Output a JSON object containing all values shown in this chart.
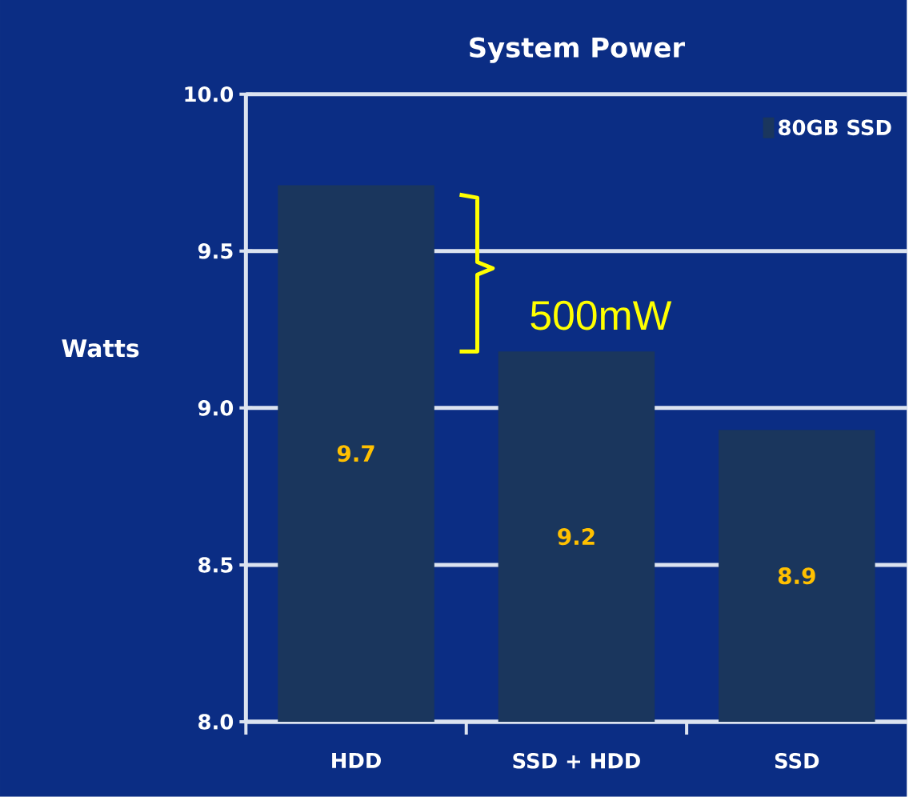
{
  "chart_data": {
    "type": "bar",
    "title": "System Power",
    "ylabel": "Watts",
    "categories": [
      "HDD",
      "SSD + HDD",
      "SSD"
    ],
    "series": [
      {
        "name": "80GB SSD",
        "color": "#1a365d",
        "values": [
          9.71,
          9.18,
          8.93
        ],
        "value_labels": [
          "9.7",
          "9.2",
          "8.9"
        ]
      }
    ],
    "ylim": [
      8.0,
      10.0
    ],
    "yticks": [
      {
        "value": 8.0,
        "label": "8.0"
      },
      {
        "value": 8.5,
        "label": "8.5"
      },
      {
        "value": 9.0,
        "label": "9.0"
      },
      {
        "value": 9.5,
        "label": "9.5"
      },
      {
        "value": 10.0,
        "label": "10.0"
      }
    ],
    "grid": "y",
    "legend": "top right",
    "annotations": [
      "500mW"
    ]
  }
}
